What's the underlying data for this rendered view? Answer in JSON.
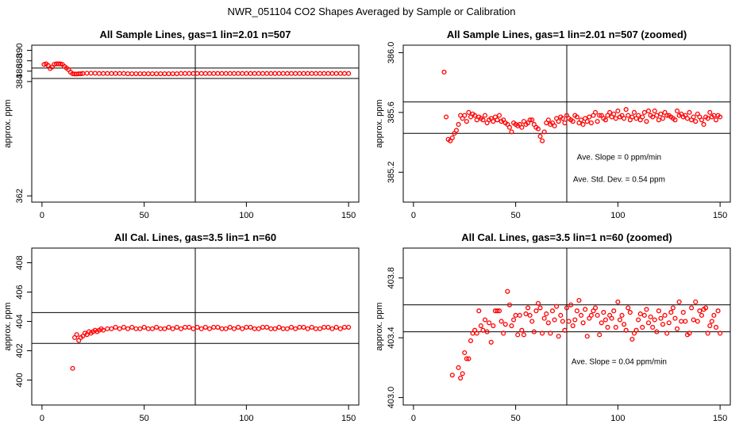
{
  "figure_title": "NWR_051104  CO2 Shapes Averaged by Sample or Calibration",
  "colors": {
    "points": "#ff0000",
    "axes": "#000000"
  },
  "chart_data": [
    {
      "type": "scatter",
      "title": "All Sample Lines, gas=1 lin=2.01 n=507",
      "xlabel": "",
      "ylabel": "approx. ppm",
      "xlim": [
        -5,
        155
      ],
      "ylim": [
        360.8,
        391.0
      ],
      "xticks": [
        0,
        50,
        100,
        150
      ],
      "yticks": [
        362,
        384,
        386,
        388,
        390
      ],
      "ytick_labels": [
        "362",
        "384",
        "386",
        "388",
        "390"
      ],
      "hlines": [
        386.6,
        384.6
      ],
      "vline": 75,
      "x": [
        1,
        2,
        3,
        4,
        5,
        6,
        7,
        8,
        9,
        10,
        11,
        12,
        13,
        14,
        15,
        16,
        17,
        18,
        19,
        20,
        22,
        24,
        26,
        28,
        30,
        32,
        34,
        36,
        38,
        40,
        42,
        44,
        46,
        48,
        50,
        52,
        54,
        56,
        58,
        60,
        62,
        64,
        66,
        68,
        70,
        72,
        74,
        76,
        78,
        80,
        82,
        84,
        86,
        88,
        90,
        92,
        94,
        96,
        98,
        100,
        102,
        104,
        106,
        108,
        110,
        112,
        114,
        116,
        118,
        120,
        122,
        124,
        126,
        128,
        130,
        132,
        134,
        136,
        138,
        140,
        142,
        144,
        146,
        148,
        150
      ],
      "y": [
        387.3,
        387.4,
        387.1,
        386.5,
        386.8,
        387.3,
        387.4,
        387.4,
        387.4,
        387.3,
        386.9,
        386.6,
        386.3,
        385.8,
        385.5,
        385.45,
        385.45,
        385.5,
        385.5,
        385.55,
        385.6,
        385.6,
        385.6,
        385.55,
        385.55,
        385.55,
        385.55,
        385.55,
        385.55,
        385.55,
        385.5,
        385.5,
        385.5,
        385.5,
        385.5,
        385.5,
        385.5,
        385.5,
        385.5,
        385.5,
        385.5,
        385.5,
        385.5,
        385.55,
        385.55,
        385.55,
        385.55,
        385.55,
        385.55,
        385.55,
        385.55,
        385.55,
        385.55,
        385.55,
        385.55,
        385.55,
        385.55,
        385.55,
        385.55,
        385.55,
        385.55,
        385.55,
        385.55,
        385.55,
        385.55,
        385.55,
        385.55,
        385.55,
        385.55,
        385.55,
        385.55,
        385.55,
        385.55,
        385.55,
        385.55,
        385.55,
        385.55,
        385.55,
        385.55,
        385.55,
        385.55,
        385.55,
        385.55,
        385.55,
        385.55
      ],
      "annotations": []
    },
    {
      "type": "scatter",
      "title": "All Sample Lines, gas=1 lin=2.01 n=507 (zoomed)",
      "xlabel": "",
      "ylabel": "approx. ppm",
      "xlim": [
        -5,
        155
      ],
      "ylim": [
        385.0,
        386.05
      ],
      "xticks": [
        0,
        50,
        100,
        150
      ],
      "yticks": [
        385.2,
        385.6,
        386.0
      ],
      "ytick_labels": [
        "385.2",
        "385.6",
        "386.0"
      ],
      "hlines": [
        385.67,
        385.46
      ],
      "vline": 75,
      "x": [
        15,
        16,
        17,
        18,
        19,
        20,
        21,
        22,
        23,
        24,
        25,
        26,
        27,
        28,
        29,
        30,
        31,
        32,
        33,
        34,
        35,
        36,
        37,
        38,
        39,
        40,
        41,
        42,
        43,
        44,
        45,
        46,
        47,
        48,
        49,
        50,
        51,
        52,
        53,
        54,
        55,
        56,
        57,
        58,
        59,
        60,
        61,
        62,
        63,
        64,
        65,
        66,
        67,
        68,
        69,
        70,
        71,
        72,
        73,
        74,
        75,
        76,
        77,
        78,
        79,
        80,
        81,
        82,
        83,
        84,
        85,
        86,
        87,
        88,
        89,
        90,
        91,
        92,
        93,
        94,
        95,
        96,
        97,
        98,
        99,
        100,
        101,
        102,
        103,
        104,
        105,
        106,
        107,
        108,
        109,
        110,
        111,
        112,
        113,
        114,
        115,
        116,
        117,
        118,
        119,
        120,
        121,
        122,
        123,
        124,
        125,
        126,
        127,
        128,
        129,
        130,
        131,
        132,
        133,
        134,
        135,
        136,
        137,
        138,
        139,
        140,
        141,
        142,
        143,
        144,
        145,
        146,
        147,
        148,
        149,
        150
      ],
      "y": [
        385.87,
        385.57,
        385.42,
        385.41,
        385.43,
        385.46,
        385.48,
        385.52,
        385.58,
        385.56,
        385.58,
        385.54,
        385.6,
        385.57,
        385.59,
        385.58,
        385.55,
        385.57,
        385.56,
        385.55,
        385.58,
        385.53,
        385.55,
        385.56,
        385.54,
        385.57,
        385.55,
        385.58,
        385.54,
        385.55,
        385.53,
        385.52,
        385.5,
        385.47,
        385.53,
        385.52,
        385.51,
        385.52,
        385.5,
        385.54,
        385.52,
        385.53,
        385.55,
        385.55,
        385.52,
        385.5,
        385.49,
        385.44,
        385.41,
        385.47,
        385.53,
        385.55,
        385.52,
        385.53,
        385.51,
        385.56,
        385.54,
        385.57,
        385.56,
        385.53,
        385.58,
        385.56,
        385.55,
        385.54,
        385.58,
        385.57,
        385.53,
        385.55,
        385.52,
        385.56,
        385.54,
        385.57,
        385.53,
        385.58,
        385.6,
        385.54,
        385.58,
        385.58,
        385.56,
        385.55,
        385.58,
        385.6,
        385.57,
        385.59,
        385.56,
        385.61,
        385.57,
        385.58,
        385.56,
        385.62,
        385.58,
        385.55,
        385.57,
        385.6,
        385.56,
        385.58,
        385.55,
        385.57,
        385.6,
        385.54,
        385.61,
        385.58,
        385.57,
        385.61,
        385.58,
        385.55,
        385.59,
        385.56,
        385.6,
        385.58,
        385.58,
        385.57,
        385.56,
        385.55,
        385.61,
        385.58,
        385.59,
        385.57,
        385.58,
        385.56,
        385.6,
        385.55,
        385.57,
        385.54,
        385.59,
        385.57,
        385.55,
        385.52,
        385.57,
        385.56,
        385.6,
        385.57,
        385.58,
        385.55,
        385.58,
        385.57
      ],
      "annotations": [
        "Ave. Slope =  0  ppm/min",
        "Ave. Std. Dev. =  0.54  ppm"
      ]
    },
    {
      "type": "scatter",
      "title": "All Cal. Lines, gas=3.5 lin=1 n=60",
      "xlabel": "",
      "ylabel": "approx. ppm",
      "xlim": [
        -5,
        155
      ],
      "ylim": [
        398.3,
        409.0
      ],
      "xticks": [
        0,
        50,
        100,
        150
      ],
      "yticks": [
        400,
        402,
        404,
        406,
        408
      ],
      "ytick_labels": [
        "400",
        "402",
        "404",
        "406",
        "408"
      ],
      "hlines": [
        404.6,
        402.5
      ],
      "vline": 75,
      "x": [
        15,
        16,
        17,
        18,
        19,
        20,
        21,
        22,
        23,
        24,
        25,
        26,
        27,
        28,
        29,
        30,
        32,
        34,
        36,
        38,
        40,
        42,
        44,
        46,
        48,
        50,
        52,
        54,
        56,
        58,
        60,
        62,
        64,
        66,
        68,
        70,
        72,
        74,
        76,
        78,
        80,
        82,
        84,
        86,
        88,
        90,
        92,
        94,
        96,
        98,
        100,
        102,
        104,
        106,
        108,
        110,
        112,
        114,
        116,
        118,
        120,
        122,
        124,
        126,
        128,
        130,
        132,
        134,
        136,
        138,
        140,
        142,
        144,
        146,
        148,
        150
      ],
      "y": [
        400.8,
        402.9,
        403.1,
        402.7,
        402.9,
        403.0,
        403.2,
        403.1,
        403.3,
        403.2,
        403.3,
        403.4,
        403.3,
        403.4,
        403.5,
        403.4,
        403.5,
        403.5,
        403.6,
        403.5,
        403.6,
        403.5,
        403.6,
        403.5,
        403.5,
        403.6,
        403.5,
        403.5,
        403.6,
        403.5,
        403.5,
        403.6,
        403.5,
        403.6,
        403.5,
        403.6,
        403.6,
        403.5,
        403.6,
        403.5,
        403.6,
        403.5,
        403.6,
        403.6,
        403.5,
        403.5,
        403.6,
        403.5,
        403.6,
        403.5,
        403.6,
        403.6,
        403.5,
        403.5,
        403.6,
        403.6,
        403.5,
        403.5,
        403.6,
        403.5,
        403.5,
        403.6,
        403.5,
        403.6,
        403.6,
        403.5,
        403.6,
        403.5,
        403.5,
        403.6,
        403.6,
        403.5,
        403.6,
        403.5,
        403.6,
        403.6
      ],
      "annotations": []
    },
    {
      "type": "scatter",
      "title": "All Cal. Lines, gas=3.5 lin=1 n=60 (zoomed)",
      "xlabel": "",
      "ylabel": "approx. ppm",
      "xlim": [
        -5,
        155
      ],
      "ylim": [
        402.95,
        404.0
      ],
      "xticks": [
        0,
        50,
        100,
        150
      ],
      "yticks": [
        403.0,
        403.4,
        403.8
      ],
      "ytick_labels": [
        "403.0",
        "403.4",
        "403.8"
      ],
      "hlines": [
        403.62,
        403.44
      ],
      "vline": 75,
      "x": [
        19,
        22,
        23,
        24,
        25,
        26,
        27,
        28,
        29,
        30,
        31,
        32,
        33,
        34,
        35,
        36,
        37,
        38,
        39,
        40,
        41,
        42,
        43,
        44,
        45,
        46,
        47,
        48,
        49,
        50,
        51,
        52,
        53,
        54,
        55,
        56,
        57,
        58,
        59,
        60,
        61,
        62,
        63,
        64,
        65,
        66,
        67,
        68,
        69,
        70,
        71,
        72,
        73,
        74,
        75,
        76,
        77,
        78,
        79,
        80,
        81,
        82,
        83,
        84,
        85,
        86,
        87,
        88,
        89,
        90,
        91,
        92,
        93,
        94,
        95,
        96,
        97,
        98,
        99,
        100,
        101,
        102,
        103,
        104,
        105,
        106,
        107,
        108,
        109,
        110,
        111,
        112,
        113,
        114,
        115,
        116,
        117,
        118,
        119,
        120,
        121,
        122,
        123,
        124,
        125,
        126,
        127,
        128,
        129,
        130,
        131,
        132,
        133,
        134,
        135,
        136,
        137,
        138,
        139,
        140,
        141,
        142,
        143,
        144,
        145,
        146,
        147,
        148,
        149,
        150
      ],
      "y": [
        403.15,
        403.2,
        403.13,
        403.16,
        403.3,
        403.26,
        403.26,
        403.38,
        403.43,
        403.45,
        403.43,
        403.58,
        403.48,
        403.45,
        403.52,
        403.44,
        403.5,
        403.37,
        403.48,
        403.58,
        403.58,
        403.58,
        403.51,
        403.43,
        403.49,
        403.71,
        403.62,
        403.48,
        403.52,
        403.55,
        403.42,
        403.55,
        403.45,
        403.42,
        403.56,
        403.6,
        403.55,
        403.51,
        403.44,
        403.58,
        403.63,
        403.6,
        403.43,
        403.53,
        403.56,
        403.5,
        403.43,
        403.58,
        403.52,
        403.61,
        403.41,
        403.55,
        403.51,
        403.45,
        403.6,
        403.51,
        403.62,
        403.48,
        403.52,
        403.58,
        403.65,
        403.55,
        403.5,
        403.59,
        403.41,
        403.53,
        403.55,
        403.58,
        403.6,
        403.55,
        403.42,
        403.5,
        403.57,
        403.52,
        403.47,
        403.55,
        403.53,
        403.58,
        403.47,
        403.64,
        403.52,
        403.55,
        403.49,
        403.45,
        403.6,
        403.57,
        403.39,
        403.43,
        403.45,
        403.52,
        403.56,
        403.47,
        403.55,
        403.59,
        403.5,
        403.54,
        403.47,
        403.52,
        403.44,
        403.58,
        403.53,
        403.49,
        403.55,
        403.43,
        403.5,
        403.57,
        403.6,
        403.53,
        403.46,
        403.64,
        403.51,
        403.57,
        403.51,
        403.42,
        403.43,
        403.6,
        403.52,
        403.64,
        403.51,
        403.58,
        403.55,
        403.59,
        403.6,
        403.43,
        403.48,
        403.51,
        403.55,
        403.47,
        403.58,
        403.43
      ],
      "annotations": [
        "Ave. Slope =  0.04  ppm/min"
      ]
    }
  ]
}
